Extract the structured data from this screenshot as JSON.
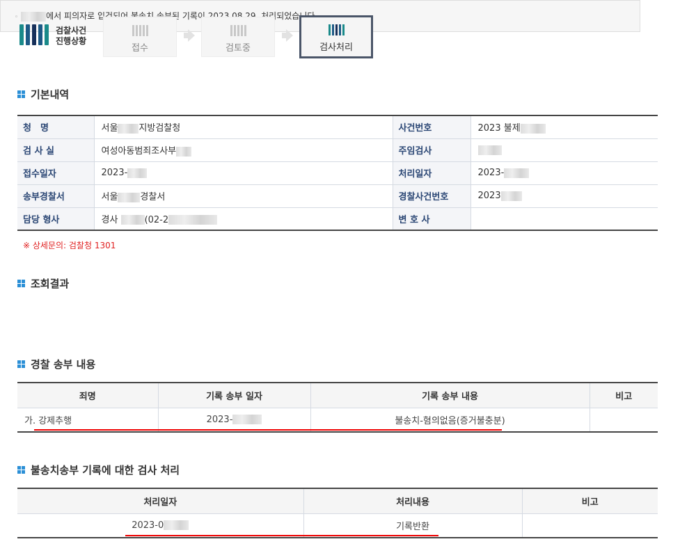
{
  "header": {
    "logo_line1": "검찰사건",
    "logo_line2": "진행상황",
    "steps": [
      {
        "label": "접수",
        "active": false
      },
      {
        "label": "검토중",
        "active": false
      },
      {
        "label": "검사처리",
        "active": true
      }
    ]
  },
  "colors": {
    "accent": "#2b8fd6",
    "label_text": "#2a4674",
    "note": "#e02020",
    "highlight": "#e00000"
  },
  "basic": {
    "title": "기본내역",
    "rows": [
      {
        "l1": "청　명",
        "v1": "서울",
        "v1b": "지방검찰청",
        "l2": "사건번호",
        "v2": "2023 불제"
      },
      {
        "l1": "검 사 실",
        "v1": "여성아동범죄조사부",
        "l2": "주임검사",
        "v2": ""
      },
      {
        "l1": "접수일자",
        "v1": "2023-",
        "l2": "처리일자",
        "v2": "2023-"
      },
      {
        "l1": "송부경찰서",
        "v1": "서울",
        "v1b": "경찰서",
        "l2": "경찰사건번호",
        "v2": "2023"
      },
      {
        "l1": "담당 형사",
        "v1": "경사",
        "v1b": "(02-2",
        "l2": "변 호 사",
        "v2": ""
      }
    ],
    "note": "※ 상세문의: 검찰청 1301"
  },
  "result": {
    "title": "조회결과",
    "text_prefix": "◦",
    "text": "에서 피의자로 입건되어 불송치 송부된 기록이 2023.08.29. 처리되었습니다."
  },
  "police": {
    "title": "경찰 송부 내용",
    "headers": [
      "죄명",
      "기록 송부 일자",
      "기록 송부 내용",
      "비고"
    ],
    "row": [
      "가. 강제추행",
      "2023-",
      "불송치-혐의없음(증거불충분)",
      ""
    ]
  },
  "processing": {
    "title": "불송치송부 기록에 대한 검사 처리",
    "headers": [
      "처리일자",
      "처리내용",
      "비고"
    ],
    "row": [
      "2023-0",
      "기록반환",
      ""
    ]
  }
}
